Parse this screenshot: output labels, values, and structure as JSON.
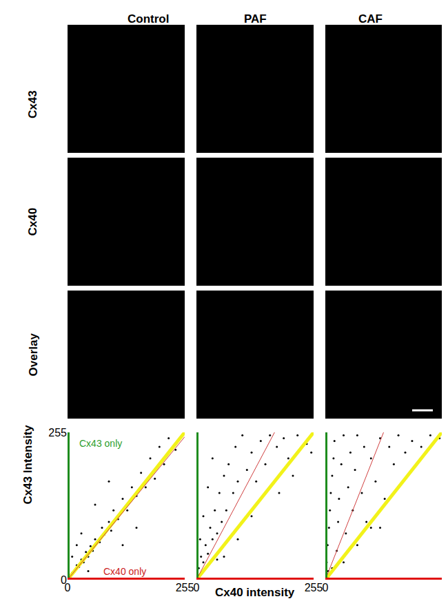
{
  "figure": {
    "column_titles": [
      "Control",
      "PAF",
      "CAF"
    ],
    "row_labels": [
      "Cx43",
      "Cx40",
      "Overlay"
    ]
  },
  "chart_data": [
    {
      "type": "scatter",
      "color": "#000000",
      "fit_slope": 0.97,
      "y_label": "Cx43 Intensity",
      "xlim": [
        0,
        255
      ],
      "ylim": [
        0,
        255
      ],
      "xticks": [
        0,
        255
      ],
      "yticks": [
        0,
        255
      ],
      "annotations": [
        {
          "text": "Cx43 only",
          "x": 22,
          "y": 236,
          "color": "#2e9e2e"
        },
        {
          "text": "Cx40 only",
          "x": 75,
          "y": 14,
          "color": "#cc2222"
        }
      ],
      "x": [
        5,
        10,
        15,
        20,
        25,
        30,
        35,
        40,
        45,
        50,
        55,
        60,
        70,
        75,
        80,
        90,
        95,
        100,
        110,
        120,
        130,
        140,
        150,
        160,
        170,
        180,
        190,
        200,
        210,
        220,
        235,
        30,
        60,
        20,
        90,
        120,
        150,
        45,
        250,
        10
      ],
      "values": [
        8,
        12,
        14,
        25,
        22,
        35,
        30,
        48,
        40,
        58,
        50,
        70,
        65,
        90,
        78,
        100,
        85,
        120,
        105,
        140,
        120,
        160,
        145,
        185,
        160,
        210,
        175,
        230,
        200,
        245,
        225,
        80,
        130,
        60,
        170,
        60,
        90,
        15,
        250,
        40
      ]
    },
    {
      "type": "scatter",
      "color": "#000000",
      "fit_slope": 1.5,
      "x_label": "Cx40 intensity",
      "tick_labels": "x",
      "xlim": [
        0,
        255
      ],
      "ylim": [
        0,
        255
      ],
      "xticks": [
        0,
        255
      ],
      "yticks": [
        0,
        255
      ],
      "x": [
        5,
        10,
        15,
        20,
        25,
        30,
        35,
        40,
        45,
        50,
        55,
        60,
        65,
        70,
        80,
        85,
        90,
        100,
        110,
        120,
        130,
        140,
        150,
        160,
        175,
        190,
        200,
        220,
        240,
        60,
        90,
        120,
        8,
        15,
        25,
        35,
        180,
        210,
        250,
        45
      ],
      "values": [
        20,
        40,
        30,
        60,
        45,
        90,
        70,
        120,
        80,
        150,
        100,
        180,
        120,
        200,
        150,
        230,
        170,
        250,
        190,
        220,
        170,
        240,
        200,
        250,
        230,
        245,
        210,
        250,
        235,
        40,
        70,
        110,
        70,
        110,
        160,
        210,
        150,
        180,
        220,
        35
      ]
    },
    {
      "type": "scatter",
      "color": "#000000",
      "fit_slope": 2.0,
      "tick_labels": "x",
      "xlim": [
        0,
        255
      ],
      "ylim": [
        0,
        255
      ],
      "xticks": [
        0,
        255
      ],
      "yticks": [
        0,
        255
      ],
      "x": [
        3,
        5,
        8,
        10,
        12,
        15,
        18,
        20,
        25,
        28,
        30,
        35,
        40,
        45,
        50,
        55,
        60,
        65,
        70,
        80,
        85,
        90,
        100,
        110,
        120,
        130,
        140,
        150,
        160,
        175,
        190,
        210,
        230,
        40,
        70,
        100,
        6,
        15,
        250,
        120
      ],
      "values": [
        30,
        60,
        90,
        120,
        150,
        180,
        210,
        240,
        50,
        100,
        140,
        200,
        250,
        80,
        160,
        220,
        120,
        190,
        250,
        150,
        230,
        100,
        210,
        170,
        245,
        140,
        230,
        200,
        250,
        220,
        240,
        230,
        250,
        30,
        60,
        90,
        15,
        20,
        245,
        90
      ]
    }
  ]
}
